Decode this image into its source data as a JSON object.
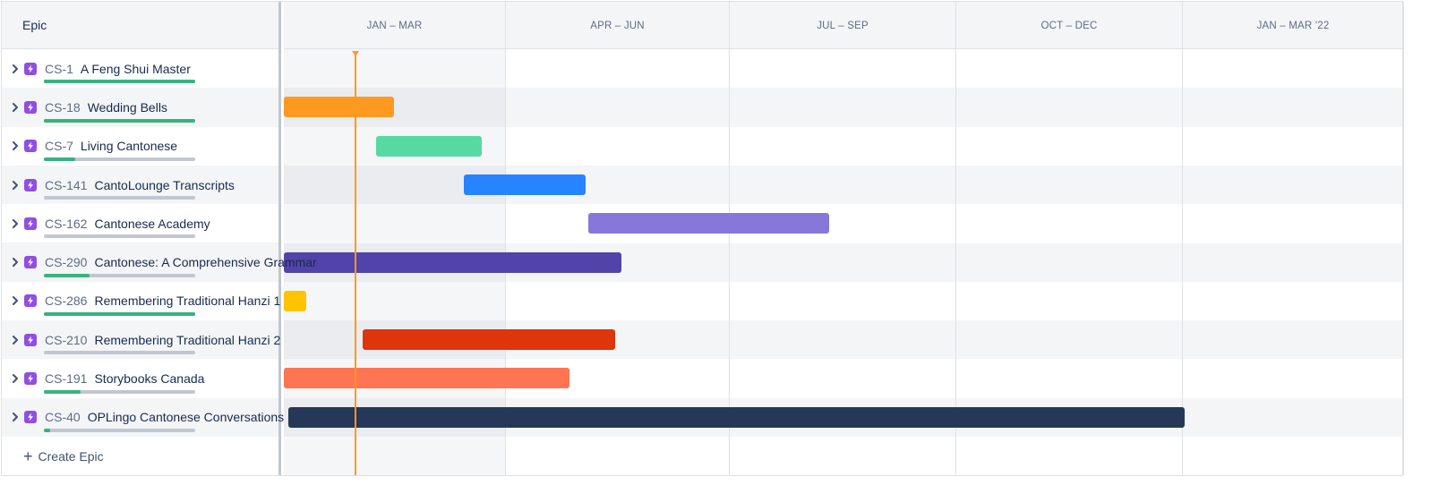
{
  "header": {
    "epic_label": "Epic"
  },
  "timeline": {
    "columns": [
      "JAN – MAR",
      "APR – JUN",
      "JUL – SEP",
      "OCT – DEC",
      "JAN – MAR '22"
    ]
  },
  "epics": [
    {
      "key": "CS-1",
      "title": "A Feng Shui Master",
      "progress": 1.0,
      "bar": null
    },
    {
      "key": "CS-18",
      "title": "Wedding Bells",
      "progress": 1.0,
      "bar": {
        "start": 0.0,
        "end": 0.49,
        "color": "#ff991f"
      }
    },
    {
      "key": "CS-7",
      "title": "Living Cantonese",
      "progress": 0.21,
      "bar": {
        "start": 0.41,
        "end": 0.88,
        "color": "#57d9a3"
      }
    },
    {
      "key": "CS-141",
      "title": "CantoLounge Transcripts",
      "progress": 0.0,
      "bar": {
        "start": 0.8,
        "end": 1.34,
        "color": "#2684ff"
      }
    },
    {
      "key": "CS-162",
      "title": "Cantonese Academy",
      "progress": 0.0,
      "bar": {
        "start": 1.35,
        "end": 2.42,
        "color": "#8777d9"
      }
    },
    {
      "key": "CS-290",
      "title": "Cantonese: A Comprehensive Grammar",
      "progress": 0.3,
      "bar": {
        "start": 0.0,
        "end": 1.5,
        "color": "#5243aa"
      }
    },
    {
      "key": "CS-286",
      "title": "Remembering Traditional Hanzi 1",
      "progress": 1.0,
      "bar": {
        "start": 0.0,
        "end": 0.1,
        "color": "#ffc400"
      }
    },
    {
      "key": "CS-210",
      "title": "Remembering Traditional Hanzi 2",
      "progress": 0.0,
      "bar": {
        "start": 0.35,
        "end": 1.47,
        "color": "#de350b"
      }
    },
    {
      "key": "CS-191",
      "title": "Storybooks Canada",
      "progress": 0.24,
      "bar": {
        "start": 0.0,
        "end": 1.27,
        "color": "#ff7452"
      }
    },
    {
      "key": "CS-40",
      "title": "OPLingo Cantonese Conversations",
      "progress": 0.04,
      "bar": {
        "start": 0.02,
        "end": 4.0,
        "color": "#253858"
      }
    }
  ],
  "today_position": 0.32,
  "create_epic_label": "Create Epic",
  "colors": {
    "epic_icon": "#904ee2",
    "progress_done": "#36b37e",
    "progress_track": "#c1c7d0",
    "today": "#ff991f"
  }
}
